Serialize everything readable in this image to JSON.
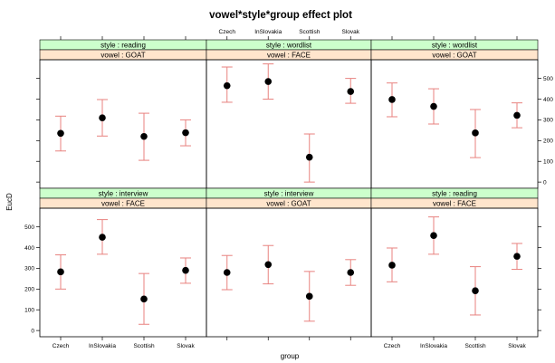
{
  "chart_data": {
    "type": "scatter",
    "title": "vowel*style*group effect plot",
    "xlabel": "group",
    "ylabel": "EucD",
    "categories": [
      "Czech",
      "InSlovakia",
      "Scottish",
      "Slovak"
    ],
    "ylim": [
      -30,
      590
    ],
    "yticks": [
      0,
      100,
      200,
      300,
      400,
      500
    ],
    "panels": [
      {
        "row": "top",
        "col": 1,
        "style": "style : reading",
        "vowel": "vowel : GOAT",
        "fit": [
          235,
          310,
          220,
          238
        ],
        "lower": [
          150,
          222,
          105,
          175
        ],
        "upper": [
          318,
          398,
          332,
          300
        ]
      },
      {
        "row": "top",
        "col": 2,
        "style": "style : wordlist",
        "vowel": "vowel : FACE",
        "fit": [
          465,
          485,
          120,
          437
        ],
        "lower": [
          385,
          400,
          0,
          380
        ],
        "upper": [
          555,
          570,
          232,
          500
        ]
      },
      {
        "row": "top",
        "col": 3,
        "style": "style : wordlist",
        "vowel": "vowel : GOAT",
        "fit": [
          398,
          365,
          237,
          322
        ],
        "lower": [
          315,
          280,
          118,
          262
        ],
        "upper": [
          478,
          450,
          350,
          382
        ]
      },
      {
        "row": "bottom",
        "col": 1,
        "style": "style : interview",
        "vowel": "vowel : FACE",
        "fit": [
          283,
          450,
          152,
          290
        ],
        "lower": [
          200,
          368,
          30,
          228
        ],
        "upper": [
          365,
          535,
          275,
          350
        ]
      },
      {
        "row": "bottom",
        "col": 2,
        "style": "style : interview",
        "vowel": "vowel : GOAT",
        "fit": [
          280,
          318,
          165,
          280
        ],
        "lower": [
          197,
          225,
          45,
          218
        ],
        "upper": [
          362,
          410,
          285,
          342
        ]
      },
      {
        "row": "bottom",
        "col": 3,
        "style": "style : reading",
        "vowel": "vowel : FACE",
        "fit": [
          315,
          458,
          192,
          358
        ],
        "lower": [
          235,
          368,
          75,
          295
        ],
        "upper": [
          398,
          548,
          308,
          420
        ]
      }
    ]
  }
}
